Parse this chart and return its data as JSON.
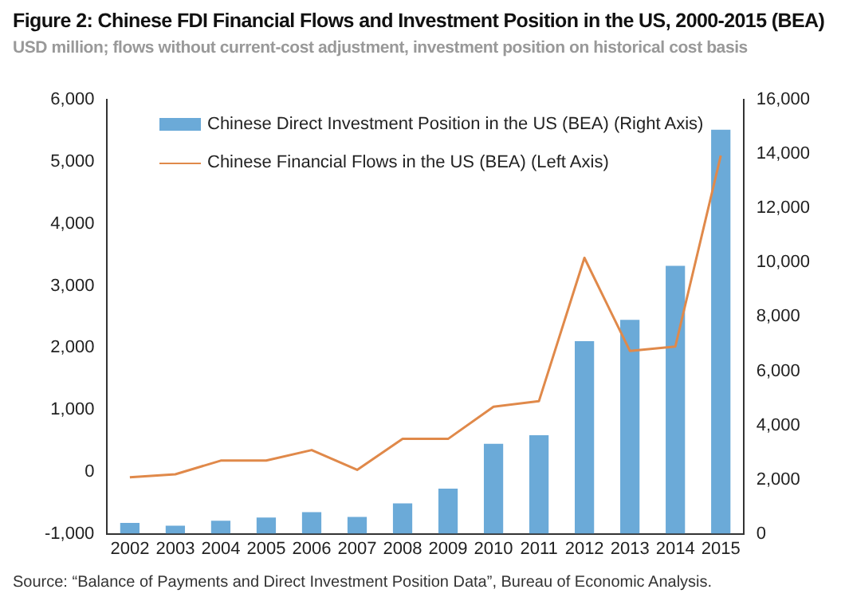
{
  "chart_data": {
    "type": "bar",
    "title": "Figure 2: Chinese FDI Financial Flows and Investment Position in the US, 2000-2015 (BEA)",
    "subtitle": "USD million; flows without current-cost adjustment, investment position on historical cost basis",
    "annotations": [
      "Source: “Balance of Payments and Direct Investment Position Data”, Bureau of Economic Analysis."
    ],
    "categories": [
      "2002",
      "2003",
      "2004",
      "2005",
      "2006",
      "2007",
      "2008",
      "2009",
      "2010",
      "2011",
      "2012",
      "2013",
      "2014",
      "2015"
    ],
    "series": [
      {
        "name": "Chinese Direct Investment Position in the US (BEA) (Right Axis)",
        "axis": "y2",
        "color": "#6baad8",
        "values": [
          400,
          300,
          480,
          600,
          800,
          620,
          1120,
          1660,
          3320,
          3630,
          7100,
          7890,
          9880,
          14900
        ]
      },
      {
        "name": "Chinese Financial Flows in the US (BEA) (Left Axis)",
        "type": "line",
        "color": "#e0894a",
        "values": [
          -90,
          -40,
          180,
          180,
          350,
          30,
          530,
          530,
          1050,
          1140,
          3450,
          1950,
          2020,
          5100
        ]
      }
    ],
    "ylim": [
      -1000,
      6000
    ],
    "yticks": [
      {
        "value": -1000,
        "label": "-1,000"
      },
      0,
      {
        "value": 1000,
        "label": "1,000"
      },
      {
        "value": 2000,
        "label": "2,000"
      },
      {
        "value": 3000,
        "label": "3,000"
      },
      {
        "value": 4000,
        "label": "4,000"
      },
      {
        "value": 5000,
        "label": "5,000"
      },
      {
        "value": 6000,
        "label": "6,000"
      }
    ],
    "y2lim": [
      0,
      16000
    ],
    "y2ticks": [
      0,
      {
        "value": 2000,
        "label": "2,000"
      },
      {
        "value": 4000,
        "label": "4,000"
      },
      {
        "value": 6000,
        "label": "6,000"
      },
      {
        "value": 8000,
        "label": "8,000"
      },
      {
        "value": 10000,
        "label": "10,000"
      },
      {
        "value": 12000,
        "label": "12,000"
      },
      {
        "value": 14000,
        "label": "14,000"
      },
      {
        "value": 16000,
        "label": "16,000"
      }
    ],
    "grid": false,
    "legend": "top left",
    "marker": "none",
    "line_style": "solid"
  }
}
